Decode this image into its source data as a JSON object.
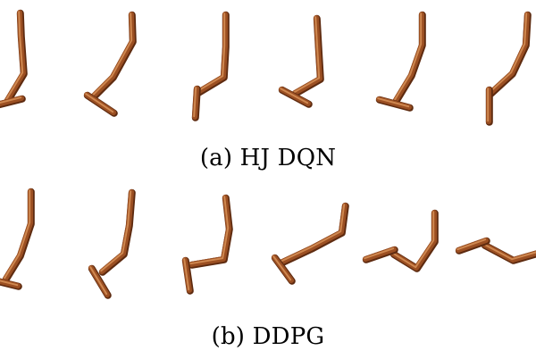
{
  "figure": {
    "captions": {
      "a": "(a) HJ DQN",
      "b": "(b) DDPG"
    },
    "link_colors": {
      "dark": "#5e2b10",
      "main": "#9b4f22",
      "highlight": "#cf8850"
    }
  }
}
